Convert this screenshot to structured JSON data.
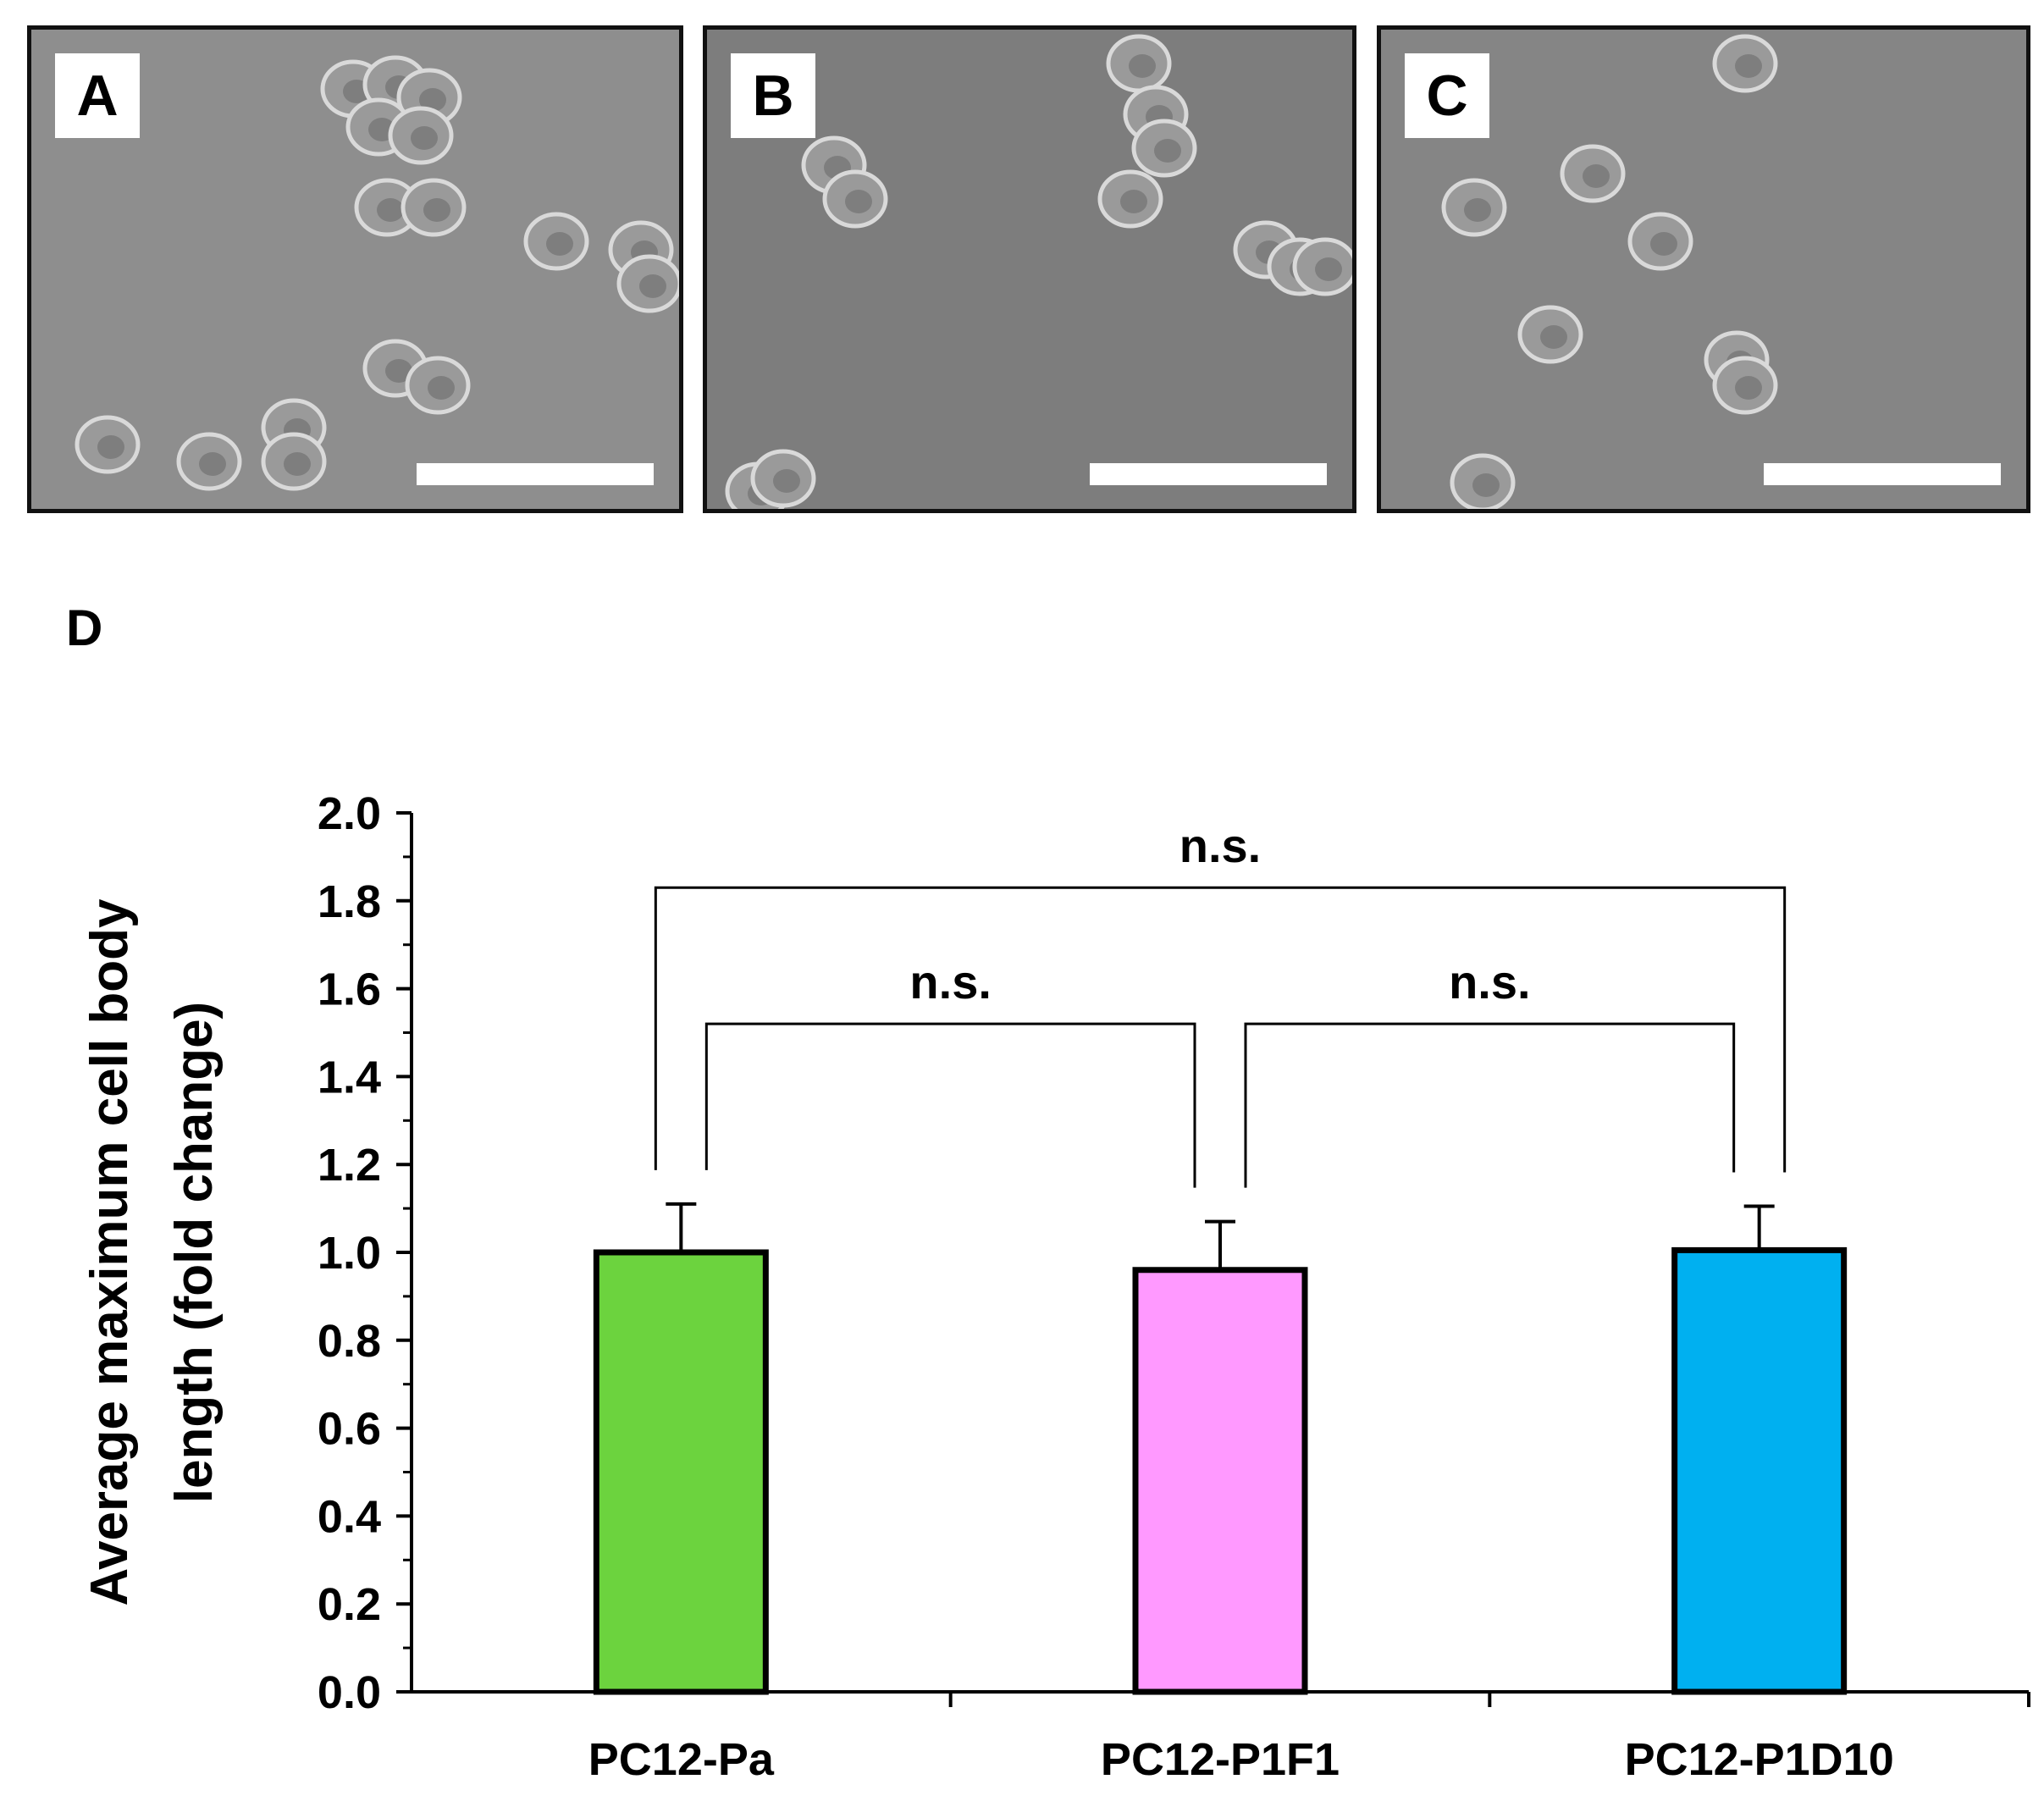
{
  "panels": [
    {
      "letter": "A",
      "bg": "#8e8e8e"
    },
    {
      "letter": "B",
      "bg": "#7d7d7d"
    },
    {
      "letter": "C",
      "bg": "#858585"
    }
  ],
  "chart_label": "D",
  "chart_data": {
    "type": "bar",
    "categories": [
      "PC12-Pa",
      "PC12-P1F1",
      "PC12-P1D10"
    ],
    "values": [
      1.0,
      0.96,
      1.005
    ],
    "errors": [
      0.11,
      0.11,
      0.1
    ],
    "colors": [
      "#6cd33e",
      "#ff99ff",
      "#00b0f0"
    ],
    "ylabel_lines": [
      "Average  maximum cell body",
      "length (fold change)"
    ],
    "ylim": [
      0,
      2.0
    ],
    "yticks": [
      "0.0",
      "0.2",
      "0.4",
      "0.6",
      "0.8",
      "1.0",
      "1.2",
      "1.4",
      "1.6",
      "1.8",
      "2.0"
    ],
    "significance": [
      {
        "from": 0,
        "to": 1,
        "label": "n.s.",
        "level": 1.52
      },
      {
        "from": 1,
        "to": 2,
        "label": "n.s.",
        "level": 1.52
      },
      {
        "from": 0,
        "to": 2,
        "label": "n.s.",
        "level": 1.83
      }
    ],
    "grid": false,
    "legend": "none"
  }
}
